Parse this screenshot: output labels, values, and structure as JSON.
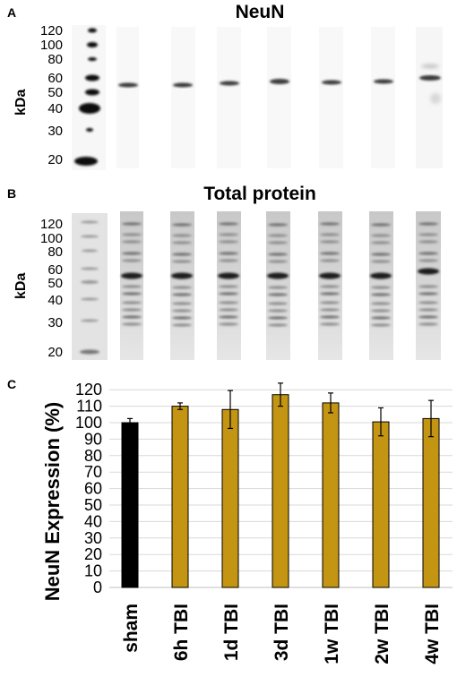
{
  "panel_a": {
    "letter": "A",
    "title": "NeuN",
    "axis_unit": "kDa",
    "marker_labels": [
      "120",
      "100",
      "80",
      "60",
      "50",
      "40",
      "30",
      "20"
    ]
  },
  "panel_b": {
    "letter": "B",
    "title": "Total protein",
    "axis_unit": "kDa",
    "marker_labels": [
      "120",
      "100",
      "80",
      "60",
      "50",
      "40",
      "30",
      "20"
    ]
  },
  "panel_c": {
    "letter": "C"
  },
  "colors": {
    "sham_bar": "#000000",
    "tbi_bar": "#c49512",
    "grid": "#d9d9d9"
  },
  "chart_data": {
    "type": "bar",
    "categories": [
      "sham",
      "6h TBI",
      "1d TBI",
      "3d TBI",
      "1w TBI",
      "2w TBI",
      "4w TBI"
    ],
    "values": [
      100,
      110,
      108,
      117,
      112,
      100.5,
      102.5
    ],
    "error": [
      2.5,
      2,
      11.5,
      7,
      6,
      8.5,
      11
    ],
    "ylabel": "NeuN Expression (%)",
    "yticks": [
      "0",
      "10",
      "20",
      "30",
      "40",
      "50",
      "60",
      "70",
      "80",
      "90",
      "100",
      "110",
      "120"
    ],
    "ylim": [
      0,
      125
    ],
    "grid": true
  }
}
